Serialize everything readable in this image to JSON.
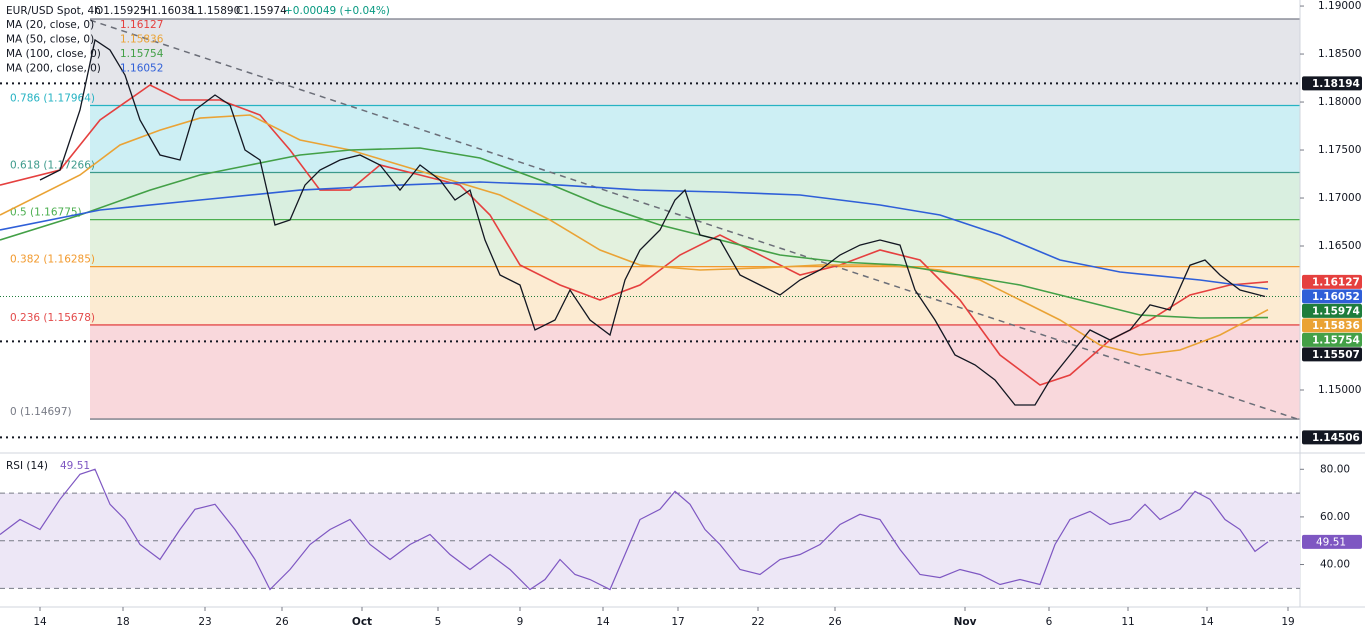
{
  "header": {
    "symbol": "EUR/USD Spot, 4h",
    "ohlc": [
      "O1.15925",
      "H1.16038",
      "L1.15890",
      "C1.15974"
    ],
    "change": "+0.00049 (+0.04%)"
  },
  "chart_data": {
    "type": "line",
    "ylim": [
      1.14354,
      1.19063
    ],
    "xlim": [
      0,
      130
    ],
    "yticks": [
      {
        "value": 1.19,
        "label": "1.19000"
      },
      {
        "value": 1.185,
        "label": "1.18500"
      },
      {
        "value": 1.18,
        "label": "1.18000"
      },
      {
        "value": 1.175,
        "label": "1.17500"
      },
      {
        "value": 1.17,
        "label": "1.17000"
      },
      {
        "value": 1.165,
        "label": "1.16500"
      },
      {
        "value": 1.15,
        "label": "1.15000"
      }
    ],
    "xticks": [
      {
        "value": 4,
        "label": "14"
      },
      {
        "value": 12.3,
        "label": "18"
      },
      {
        "value": 20.5,
        "label": "23"
      },
      {
        "value": 28.2,
        "label": "26"
      },
      {
        "value": 36.2,
        "label": "Oct"
      },
      {
        "value": 43.8,
        "label": "5"
      },
      {
        "value": 52,
        "label": "9"
      },
      {
        "value": 60.3,
        "label": "14"
      },
      {
        "value": 67.8,
        "label": "17"
      },
      {
        "value": 75.8,
        "label": "22"
      },
      {
        "value": 83.5,
        "label": "26"
      },
      {
        "value": 96.5,
        "label": "Nov"
      },
      {
        "value": 104.9,
        "label": "6"
      },
      {
        "value": 112.8,
        "label": "11"
      },
      {
        "value": 120.7,
        "label": "14"
      },
      {
        "value": 128.8,
        "label": "19"
      }
    ],
    "price": {
      "color": "#131722",
      "last": 1.15974,
      "last_color": "#1e7d3c",
      "x": [
        4,
        6,
        8,
        9.5,
        11,
        12.5,
        14,
        16,
        18,
        19.5,
        21.5,
        23,
        24.5,
        26,
        27.5,
        29,
        30.5,
        32,
        34,
        36,
        38,
        40,
        42,
        44,
        45.5,
        47,
        48.5,
        50,
        52,
        53.5,
        55.5,
        57,
        59,
        61,
        62.5,
        64,
        66,
        67.5,
        68.5,
        70,
        72,
        74,
        76,
        78,
        80,
        82,
        84,
        86,
        88,
        90,
        91.5,
        93.5,
        95.5,
        97.5,
        99.5,
        101.5,
        103.5,
        105,
        107,
        109,
        111,
        113,
        115,
        117,
        119,
        120.5,
        122,
        124,
        126.5
      ],
      "values": [
        1.17188,
        1.17292,
        1.17917,
        1.18646,
        1.18542,
        1.18281,
        1.17813,
        1.17448,
        1.17396,
        1.17917,
        1.18073,
        1.17969,
        1.175,
        1.17396,
        1.16719,
        1.16771,
        1.17135,
        1.17292,
        1.17396,
        1.17448,
        1.17344,
        1.17083,
        1.17344,
        1.17188,
        1.16979,
        1.17083,
        1.16563,
        1.16198,
        1.16094,
        1.15625,
        1.15729,
        1.16042,
        1.15729,
        1.15573,
        1.16146,
        1.16458,
        1.16667,
        1.16979,
        1.17083,
        1.16615,
        1.16563,
        1.16198,
        1.16094,
        1.1599,
        1.16146,
        1.1625,
        1.16406,
        1.1651,
        1.16563,
        1.1651,
        1.16042,
        1.15729,
        1.15365,
        1.15261,
        1.15104,
        1.14844,
        1.14844,
        1.15104,
        1.15365,
        1.15625,
        1.15521,
        1.15625,
        1.15886,
        1.15833,
        1.163,
        1.16354,
        1.16198,
        1.16042,
        1.15974
      ]
    },
    "series": [
      {
        "name": "MA (20, close, 0)",
        "color": "#e5403f",
        "last": 1.16127,
        "x": [
          0,
          6,
          10,
          15,
          18,
          22,
          26,
          29,
          32,
          35,
          38,
          42,
          46,
          49,
          52,
          56,
          60,
          64,
          68,
          72,
          76,
          80,
          84,
          88,
          92,
          96,
          100,
          104,
          107,
          111,
          115,
          119,
          123,
          126.8
        ],
        "values": [
          1.17135,
          1.17292,
          1.17813,
          1.18177,
          1.18021,
          1.18021,
          1.17865,
          1.175,
          1.17083,
          1.17083,
          1.17344,
          1.1724,
          1.17135,
          1.16823,
          1.16302,
          1.16094,
          1.15938,
          1.16094,
          1.16406,
          1.16615,
          1.16406,
          1.16198,
          1.16302,
          1.16458,
          1.16354,
          1.15938,
          1.15365,
          1.15052,
          1.15156,
          1.15521,
          1.15729,
          1.1599,
          1.16094,
          1.16127
        ]
      },
      {
        "name": "MA (50, close, 0)",
        "color": "#eaa335",
        "last": 1.15836,
        "x": [
          0,
          8,
          12,
          16,
          20,
          25,
          30,
          35,
          40,
          45,
          50,
          55,
          60,
          64,
          70,
          76,
          82,
          88,
          94,
          98,
          102,
          106,
          110,
          114,
          118,
          122,
          126.8
        ],
        "values": [
          1.16823,
          1.1724,
          1.17552,
          1.17708,
          1.17833,
          1.17865,
          1.17604,
          1.175,
          1.17344,
          1.17188,
          1.17031,
          1.16771,
          1.16458,
          1.16302,
          1.1625,
          1.16271,
          1.16302,
          1.16302,
          1.1625,
          1.16146,
          1.15938,
          1.15729,
          1.15469,
          1.15365,
          1.15417,
          1.15573,
          1.15836
        ]
      },
      {
        "name": "MA (100, close, 0)",
        "color": "#43a047",
        "last": 1.15754,
        "x": [
          0,
          8,
          15,
          20,
          25,
          30,
          35,
          42,
          48,
          54,
          60,
          66,
          72,
          78,
          84,
          90,
          96,
          102,
          108,
          114,
          120,
          126.8
        ],
        "values": [
          1.16563,
          1.16823,
          1.17083,
          1.1724,
          1.17344,
          1.17448,
          1.175,
          1.17521,
          1.17417,
          1.17188,
          1.16927,
          1.16719,
          1.16563,
          1.16406,
          1.16333,
          1.16302,
          1.16198,
          1.16094,
          1.15938,
          1.15781,
          1.1575,
          1.15754
        ]
      },
      {
        "name": "MA (200, close, 0)",
        "color": "#2f5fd8",
        "last": 1.16052,
        "x": [
          0,
          10,
          20,
          30,
          40,
          48,
          56,
          64,
          72,
          80,
          88,
          94,
          100,
          106,
          112,
          120,
          126.8
        ],
        "values": [
          1.16667,
          1.16875,
          1.16979,
          1.17083,
          1.17135,
          1.17167,
          1.17135,
          1.17083,
          1.17063,
          1.17031,
          1.16927,
          1.16823,
          1.16615,
          1.16354,
          1.16229,
          1.16146,
          1.16052
        ]
      }
    ],
    "fib": {
      "start_x": 9,
      "levels": [
        {
          "label": null,
          "value": 1.18865,
          "color": "#787b86",
          "fill": "#e4e5ea"
        },
        {
          "label": "0.786 (1.17964)",
          "value": 1.17964,
          "color": "#26b3c3",
          "fill": "#cdeff4"
        },
        {
          "label": "0.618 (1.17266)",
          "value": 1.17266,
          "color": "#3d9a8b",
          "fill": "#d9efe0"
        },
        {
          "label": "0.5 (1.16775)",
          "value": 1.16775,
          "color": "#4caf50",
          "fill": "#e3f1de"
        },
        {
          "label": "0.382 (1.16285)",
          "value": 1.16285,
          "color": "#f29a2e",
          "fill": "#fcebd2"
        },
        {
          "label": "0.236 (1.15678)",
          "value": 1.15678,
          "color": "#e34b4b",
          "fill": "#f9d8dc"
        },
        {
          "label": "0 (1.14697)",
          "value": 1.14697,
          "color": "#787b86",
          "fill": null
        }
      ]
    },
    "levels": [
      1.18194,
      1.15507,
      1.14506
    ],
    "trendline": {
      "x": [
        9,
        130
      ],
      "values": [
        1.18854,
        1.14688
      ],
      "color": "#6b6e78"
    },
    "rsi": {
      "title": "RSI (14)",
      "last": 49.51,
      "color": "#7e57c2",
      "ylim": [
        23,
        86
      ],
      "band": [
        30,
        70
      ],
      "midline": 50,
      "yticks": [
        {
          "value": 80,
          "label": "80.00"
        },
        {
          "value": 60,
          "label": "60.00"
        },
        {
          "value": 40,
          "label": "40.00"
        }
      ],
      "x": [
        0,
        2,
        4,
        6,
        8,
        9.5,
        11,
        12.5,
        14,
        16,
        18,
        19.5,
        21.5,
        23.5,
        25.5,
        27,
        29,
        31,
        33,
        35,
        37,
        39,
        41,
        43,
        45,
        47,
        49,
        51,
        53,
        54.5,
        56,
        57.5,
        59,
        61,
        62.5,
        64,
        66,
        67.5,
        69,
        70.5,
        72,
        74,
        76,
        78,
        80,
        82,
        84,
        86,
        88,
        90,
        92,
        94,
        96,
        98,
        100,
        102,
        104,
        105.5,
        107,
        109,
        111,
        113,
        114.5,
        116,
        118,
        119.5,
        121,
        122.5,
        124,
        125.5,
        126.8
      ],
      "values": [
        52.6,
        58.9,
        54.7,
        67.4,
        77.9,
        80,
        65.3,
        58.9,
        48.4,
        42.1,
        54.7,
        63.2,
        65.3,
        54.7,
        42.1,
        29.5,
        37.9,
        48.4,
        54.7,
        58.9,
        48.4,
        42.1,
        48.4,
        52.6,
        44.2,
        37.9,
        44.2,
        37.9,
        29.5,
        33.7,
        42.1,
        35.8,
        33.7,
        29.5,
        44.2,
        58.9,
        63.2,
        70.7,
        65.3,
        54.7,
        48.4,
        37.9,
        35.8,
        42.1,
        44.2,
        48.4,
        56.8,
        61.1,
        58.9,
        46.3,
        35.8,
        34.5,
        37.9,
        35.8,
        31.6,
        33.7,
        31.6,
        48.4,
        58.9,
        62.3,
        56.8,
        58.9,
        65.3,
        58.9,
        63.2,
        70.7,
        67.4,
        58.9,
        54.7,
        45.5,
        49.51
      ]
    }
  }
}
